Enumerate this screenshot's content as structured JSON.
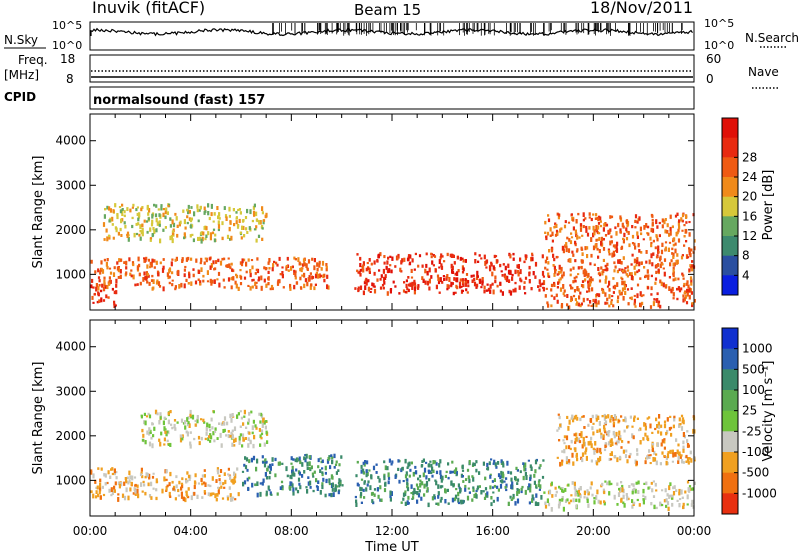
{
  "header": {
    "station": "Inuvik (fitACF)",
    "beam": "Beam 15",
    "date": "18/Nov/2011"
  },
  "top_panels": {
    "nsky_label": "N.Sky",
    "nsky_ticks": [
      "10^5",
      "10^0"
    ],
    "nsearch_label": "N.Search",
    "nsearch_ticks": [
      "10^5",
      "10^0"
    ],
    "freq_label": "Freq.",
    "freq_unit": "[MHz]",
    "freq_ticks": [
      "18",
      "8"
    ],
    "nave_label": "Nave",
    "nave_ticks": [
      "60",
      "0"
    ],
    "cpid_label": "CPID",
    "cpid_value": "normalsound (fast) 157"
  },
  "chart_data": [
    {
      "type": "heatmap",
      "name": "power",
      "ylabel": "Slant Range [km]",
      "xlabel": "",
      "yticks": [
        "1000",
        "2000",
        "3000",
        "4000"
      ],
      "ylim": [
        200,
        4600
      ],
      "colorbar": {
        "label": "Power [dB]",
        "ticks": [
          "4",
          "8",
          "12",
          "16",
          "20",
          "24",
          "28"
        ],
        "colors": [
          "#0a1fe0",
          "#2a4fa0",
          "#3d8a6e",
          "#66a860",
          "#d6c83a",
          "#f08a1a",
          "#ef5a12",
          "#e82a10",
          "#e01008"
        ]
      },
      "bands": [
        {
          "range_km": [
            300,
            800
          ],
          "level_db": 28,
          "time_h": [
            0,
            1
          ]
        },
        {
          "range_km": [
            700,
            1400
          ],
          "level_db": 24,
          "time_h": [
            0,
            9.5
          ]
        },
        {
          "range_km": [
            1800,
            2600
          ],
          "level_db": 16,
          "time_h": [
            0.5,
            7
          ]
        },
        {
          "range_km": [
            600,
            1500
          ],
          "level_db": 28,
          "time_h": [
            10.5,
            18
          ]
        },
        {
          "range_km": [
            300,
            2400
          ],
          "level_db": 24,
          "time_h": [
            18,
            24
          ]
        }
      ]
    },
    {
      "type": "heatmap",
      "name": "velocity",
      "ylabel": "Slant Range [km]",
      "xlabel": "Time UT",
      "xticks": [
        "00:00",
        "04:00",
        "08:00",
        "12:00",
        "16:00",
        "20:00",
        "00:00"
      ],
      "yticks": [
        "1000",
        "2000",
        "3000",
        "4000"
      ],
      "ylim": [
        200,
        4600
      ],
      "colorbar": {
        "label": "Velocity [m s⁻¹]",
        "ticks": [
          "1000",
          "500",
          "100",
          "25",
          "-25",
          "-100",
          "-500",
          "-1000"
        ],
        "colors": [
          "#1030d0",
          "#2a5fb0",
          "#3a8a6a",
          "#5aaa50",
          "#6ec43a",
          "#c8c8c0",
          "#f0a020",
          "#f07010",
          "#e83010"
        ]
      },
      "bands": [
        {
          "range_km": [
            600,
            1300
          ],
          "velocity": -100,
          "time_h": [
            0,
            6
          ]
        },
        {
          "range_km": [
            700,
            1600
          ],
          "velocity": 100,
          "time_h": [
            6,
            10
          ]
        },
        {
          "range_km": [
            1800,
            2600
          ],
          "velocity": -25,
          "time_h": [
            2,
            7
          ]
        },
        {
          "range_km": [
            500,
            1500
          ],
          "velocity": 100,
          "time_h": [
            10.5,
            18
          ]
        },
        {
          "range_km": [
            400,
            1000
          ],
          "velocity": -25,
          "time_h": [
            18,
            24
          ]
        },
        {
          "range_km": [
            1400,
            2500
          ],
          "velocity": -100,
          "time_h": [
            18.5,
            24
          ]
        }
      ]
    }
  ]
}
